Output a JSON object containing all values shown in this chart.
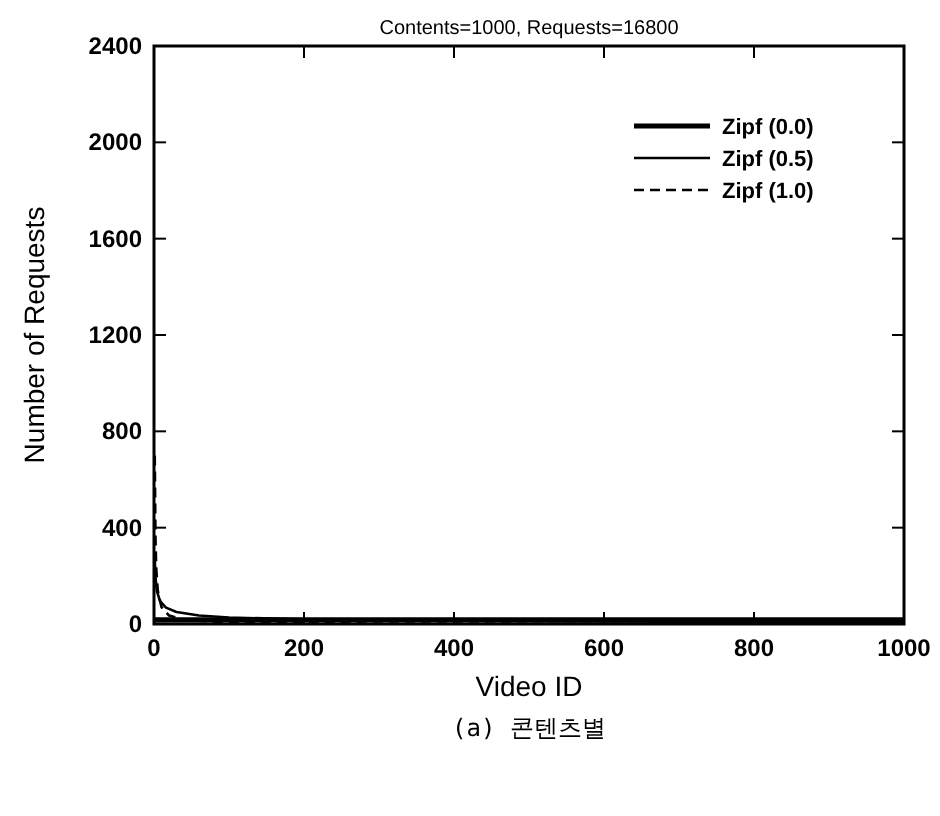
{
  "chart_data": {
    "type": "line",
    "title": "Contents=1000, Requests=16800",
    "xlabel": "Video ID",
    "ylabel": "Number of Requests",
    "annotations": [
      "(a) 콘텐츠별"
    ],
    "xlim": [
      0,
      1000
    ],
    "ylim": [
      0,
      2400
    ],
    "xticks": [
      0,
      200,
      400,
      600,
      800,
      1000
    ],
    "yticks": [
      0,
      400,
      800,
      1200,
      1600,
      2000,
      2400
    ],
    "legend": "top right",
    "grid": false,
    "series": [
      {
        "name": "Zipf (0.0)",
        "color": "#000000",
        "line_style": "solid",
        "x": [
          1,
          100,
          200,
          300,
          400,
          500,
          600,
          700,
          800,
          900,
          1000
        ],
        "values": [
          17,
          17,
          17,
          17,
          17,
          17,
          17,
          17,
          17,
          17,
          17
        ]
      },
      {
        "name": "Zipf (0.5)",
        "color": "#000000",
        "line_style": "solid",
        "x": [
          1,
          2,
          4,
          8,
          16,
          30,
          60,
          100,
          200,
          400,
          700,
          1000
        ],
        "values": [
          270,
          190,
          135,
          95,
          68,
          50,
          35,
          27,
          19,
          14,
          10,
          9
        ]
      },
      {
        "name": "Zipf (1.0)",
        "color": "#000000",
        "line_style": "dashed",
        "x": [
          1,
          2,
          3,
          5,
          10,
          20,
          40,
          80,
          150,
          300,
          600,
          1000
        ],
        "values": [
          700,
          350,
          230,
          140,
          70,
          35,
          18,
          9,
          5,
          2,
          1,
          1
        ]
      }
    ]
  }
}
